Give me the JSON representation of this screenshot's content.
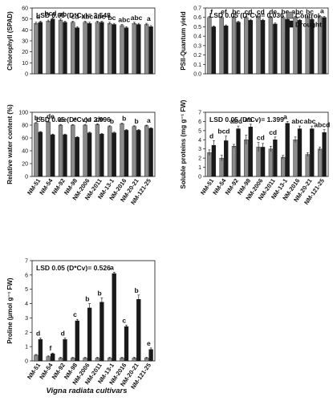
{
  "figure": {
    "xaxis_title": "Vigna radiata cultivars",
    "cultivars": [
      "NM-51",
      "NM-54",
      "NM-92",
      "NM-98",
      "NM-2006",
      "NM-2011",
      "NM-13-1",
      "NM-2016",
      "NM-20-21",
      "NM-121-25"
    ],
    "legend": [
      "Control",
      "Drought"
    ],
    "colors": {
      "control": "#8c8c8c",
      "drought": "#1a1a1a"
    }
  },
  "chart_data": [
    {
      "type": "bar",
      "ylabel": "Chlorophyll (SPAD)",
      "lsd": "LSD 0.05 (D*Cv)= 3.548",
      "ylim": [
        0,
        60
      ],
      "yticks": [
        "0",
        "10",
        "20",
        "30",
        "40",
        "50",
        "60"
      ],
      "categories": [
        "NM-51",
        "NM-54",
        "NM-92",
        "NM-98",
        "NM-2006",
        "NM-2011",
        "NM-13-1",
        "NM-2016",
        "NM-20-21",
        "NM-121-25"
      ],
      "series": [
        {
          "name": "Control",
          "values": [
            46,
            48,
            49,
            47,
            47,
            47,
            46,
            44,
            46,
            45
          ],
          "errors": [
            1,
            1,
            1,
            1,
            1,
            1,
            1,
            1,
            1,
            1
          ]
        },
        {
          "name": "Drought",
          "values": [
            47,
            50,
            47,
            42,
            46,
            47,
            45,
            42,
            45,
            43
          ],
          "errors": [
            1,
            1,
            1,
            1,
            1,
            1,
            1,
            1,
            1,
            1
          ]
        }
      ],
      "letters": [
        "d",
        "bcd",
        "ab",
        "cd",
        "abc",
        "abc",
        "bc",
        "abc",
        "abc",
        "a"
      ]
    },
    {
      "type": "bar",
      "ylabel": "PSII-Quantum yield",
      "lsd": "LSD 0.05 (D*Cv)= 0.036",
      "ylim": [
        0,
        0.7
      ],
      "yticks": [
        "0.0",
        "0.1",
        "0.2",
        "0.3",
        "0.4",
        "0.5",
        "0.6",
        "0.7"
      ],
      "categories": [
        "NM-51",
        "NM-54",
        "NM-92",
        "NM-98",
        "NM-2006",
        "NM-2011",
        "NM-13-1",
        "NM-2016",
        "NM-20-21",
        "NM-121-25"
      ],
      "series": [
        {
          "name": "Control",
          "values": [
            0.6,
            0.6,
            0.6,
            0.6,
            0.6,
            0.6,
            0.6,
            0.6,
            0.6,
            0.61
          ],
          "errors": [
            0.01,
            0.01,
            0.01,
            0.01,
            0.01,
            0.01,
            0.01,
            0.01,
            0.01,
            0.01
          ]
        },
        {
          "name": "Drought",
          "values": [
            0.5,
            0.51,
            0.55,
            0.57,
            0.57,
            0.53,
            0.58,
            0.57,
            0.58,
            0.6
          ],
          "errors": [
            0.01,
            0.01,
            0.01,
            0.01,
            0.01,
            0.01,
            0.01,
            0.01,
            0.01,
            0.01
          ]
        }
      ],
      "letters": [
        "f",
        "ef",
        "bc",
        "cd",
        "cd",
        "de",
        "bc",
        "abc",
        "bc",
        "a"
      ]
    },
    {
      "type": "bar",
      "ylabel": "Relative water content (%)",
      "lsd": "LSD 0.05 (D*Cv)= 2.996",
      "ylim": [
        0,
        100
      ],
      "yticks": [
        "0",
        "20",
        "40",
        "60",
        "80",
        "100"
      ],
      "categories": [
        "NM-51",
        "NM-54",
        "NM-92",
        "NM-98",
        "NM-2006",
        "NM-2011",
        "NM-13-1",
        "NM-2016",
        "NM-20-21",
        "NM-121-25"
      ],
      "series": [
        {
          "name": "Control",
          "values": [
            83,
            85,
            80,
            80,
            80,
            81,
            78,
            82,
            78,
            79
          ],
          "errors": [
            1,
            1,
            1,
            1,
            1,
            1,
            1,
            1,
            1,
            1
          ]
        },
        {
          "name": "Drought",
          "values": [
            69,
            65,
            65,
            61,
            68,
            66,
            68,
            72,
            72,
            75
          ],
          "errors": [
            1,
            1,
            1,
            1,
            1,
            1,
            1,
            1,
            1,
            1
          ]
        }
      ],
      "letters": [
        "bc",
        "de",
        "de",
        "e",
        "cd",
        "de",
        "b",
        "b",
        "b",
        "a"
      ]
    },
    {
      "type": "bar",
      "ylabel": "Soluble proteins (mg g⁻¹ FW)",
      "lsd": "LSD 0.05 (D*Cv)= 1.399",
      "ylim": [
        0,
        7
      ],
      "yticks": [
        "0",
        "1",
        "2",
        "3",
        "4",
        "5",
        "6",
        "7"
      ],
      "categories": [
        "NM-51",
        "NM-54",
        "NM-92",
        "NM-98",
        "NM-2006",
        "NM-2011",
        "NM-13-1",
        "NM-2016",
        "NM-20-21",
        "NM-121-25"
      ],
      "series": [
        {
          "name": "Control",
          "values": [
            2.6,
            2.0,
            3.3,
            4.0,
            3.2,
            3.0,
            2.1,
            4.0,
            2.4,
            3.0
          ],
          "errors": [
            0.3,
            0.3,
            0.2,
            0.5,
            0.5,
            0.3,
            0.2,
            0.3,
            0.2,
            0.2
          ]
        },
        {
          "name": "Drought",
          "values": [
            3.4,
            3.9,
            5.2,
            5.4,
            3.2,
            4.0,
            5.8,
            5.2,
            5.2,
            4.8
          ],
          "errors": [
            0.5,
            0.5,
            0.3,
            0.3,
            0.4,
            0.3,
            0.2,
            0.3,
            0.3,
            0.3
          ]
        }
      ],
      "letters": [
        "d",
        "bcd",
        "abc",
        "ab",
        "cd",
        "cd",
        "a",
        "abc",
        "abc",
        "abcd"
      ]
    },
    {
      "type": "bar",
      "ylabel": "Proline (µmol g⁻¹ FW)",
      "lsd": "LSD 0.05 (D*Cv)= 0.526",
      "ylim": [
        0,
        7
      ],
      "yticks": [
        "0",
        "1",
        "2",
        "3",
        "4",
        "5",
        "6",
        "7"
      ],
      "categories": [
        "NM-51",
        "NM-54",
        "NM-92",
        "NM-98",
        "NM-2006",
        "NM-2011",
        "NM-13-1",
        "NM-2016",
        "NM-20-21",
        "NM-121-25"
      ],
      "series": [
        {
          "name": "Control",
          "values": [
            0.4,
            0.3,
            0.2,
            0.2,
            0.2,
            0.2,
            0.2,
            0.2,
            0.2,
            0.2
          ],
          "errors": [
            0.05,
            0.05,
            0.05,
            0.05,
            0.05,
            0.05,
            0.05,
            0.05,
            0.05,
            0.05
          ]
        },
        {
          "name": "Drought",
          "values": [
            1.5,
            0.5,
            1.5,
            2.8,
            3.7,
            4.1,
            6.1,
            2.4,
            4.3,
            0.8
          ],
          "errors": [
            0.1,
            0.05,
            0.1,
            0.1,
            0.3,
            0.3,
            0.1,
            0.1,
            0.3,
            0.1
          ]
        }
      ],
      "letters": [
        "d",
        "f",
        "d",
        "c",
        "b",
        "b",
        "a",
        "c",
        "b",
        "e"
      ]
    }
  ]
}
